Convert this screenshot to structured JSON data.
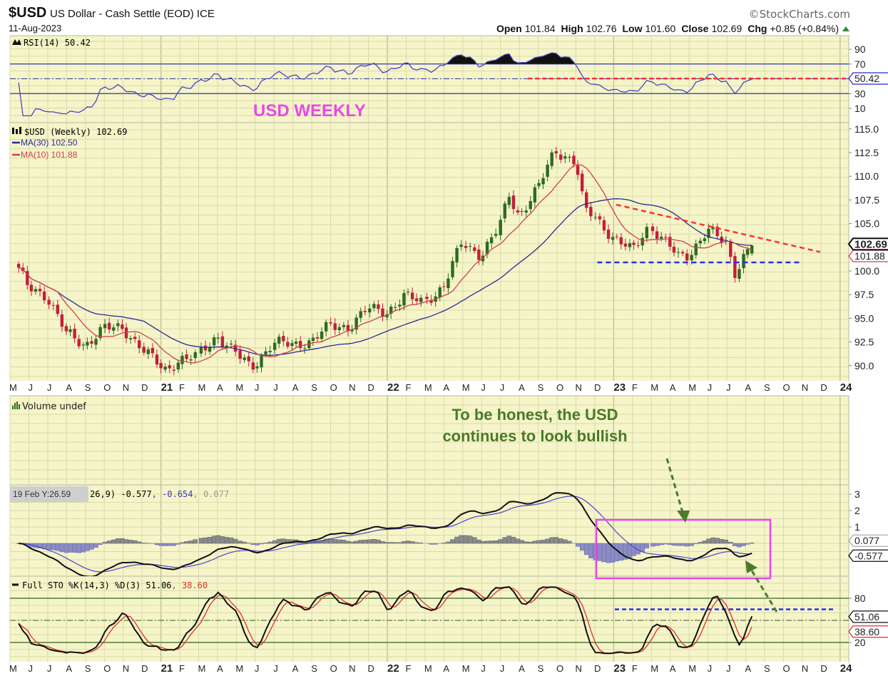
{
  "header": {
    "symbol": "$USD",
    "name": "US Dollar - Cash Settle (EOD) ICE",
    "date": "11-Aug-2023",
    "watermark": "©StockCharts.com",
    "open_label": "Open",
    "open": "101.84",
    "high_label": "High",
    "high": "102.76",
    "low_label": "Low",
    "low": "101.60",
    "close_label": "Close",
    "close": "102.69",
    "chg_label": "Chg",
    "chg": "+0.85 (+0.84%)",
    "up_icon": "triangle-up-icon"
  },
  "legends": {
    "rsi": "RSI(14) 50.42",
    "price": "$USD (Weekly) 102.69",
    "ma30": "MA(30) 102.50",
    "ma10": "MA(10) 101.88",
    "volume": "Volume undef",
    "macd_tail": "26,9) -0.577",
    "macd_signal": ", -0.654",
    "macd_hist": ", 0.077",
    "tooltip": "19 Feb Y:26.59",
    "sto": "Full STO %K(14,3) %D(3) 51.06",
    "sto_d": ", 38.60"
  },
  "badges": {
    "rsi": "50.42",
    "price": "102.69",
    "ma10": "101.88",
    "macd_hist": "0.077",
    "macd": "-0.577",
    "sto_k": "51.06",
    "sto_d": "38.60"
  },
  "annotations": {
    "title": "USD WEEKLY",
    "comment_line1": "To be honest, the USD",
    "comment_line2": "continues to look bullish"
  },
  "colors": {
    "panel": "#f5f5c9",
    "grid": "#d9d9a9",
    "up": "#2e6b1f",
    "down": "#c41e3a",
    "ma30": "#2a2a9a",
    "ma10": "#d04050",
    "rsi": "#4b45c8",
    "annot_red": "#ff3030",
    "annot_blue": "#2233ee",
    "annot_pink": "#ee44ee",
    "annot_green": "#4a7a2a"
  },
  "chart_data": {
    "type": "candlestick",
    "title": "$USD US Dollar - Cash Settle (EOD) ICE — Weekly",
    "period": "weekly",
    "last_bar": {
      "date": "2023-08-11",
      "open": 101.84,
      "high": 102.76,
      "low": 101.6,
      "close": 102.69
    },
    "anchors": [
      {
        "date": "2020-05-15",
        "close": 100.1
      },
      {
        "date": "2020-05-29",
        "close": 98.4
      },
      {
        "date": "2020-06-30",
        "close": 97.4
      },
      {
        "date": "2020-07-31",
        "close": 93.4
      },
      {
        "date": "2020-08-31",
        "close": 92.2
      },
      {
        "date": "2020-09-30",
        "close": 93.9
      },
      {
        "date": "2020-10-31",
        "close": 94.0
      },
      {
        "date": "2020-11-30",
        "close": 91.9
      },
      {
        "date": "2020-12-31",
        "close": 89.9
      },
      {
        "date": "2021-01-06",
        "close": 89.5
      },
      {
        "date": "2021-01-31",
        "close": 90.6
      },
      {
        "date": "2021-02-28",
        "close": 90.9
      },
      {
        "date": "2021-03-31",
        "close": 93.2
      },
      {
        "date": "2021-04-30",
        "close": 91.3
      },
      {
        "date": "2021-05-25",
        "close": 89.8
      },
      {
        "date": "2021-06-30",
        "close": 92.4
      },
      {
        "date": "2021-07-31",
        "close": 92.2
      },
      {
        "date": "2021-08-31",
        "close": 92.6
      },
      {
        "date": "2021-09-30",
        "close": 94.2
      },
      {
        "date": "2021-10-31",
        "close": 94.1
      },
      {
        "date": "2021-11-30",
        "close": 96.0
      },
      {
        "date": "2021-12-31",
        "close": 95.7
      },
      {
        "date": "2022-01-28",
        "close": 97.3
      },
      {
        "date": "2022-02-28",
        "close": 96.7
      },
      {
        "date": "2022-03-31",
        "close": 98.3
      },
      {
        "date": "2022-04-30",
        "close": 103.0
      },
      {
        "date": "2022-05-31",
        "close": 101.7
      },
      {
        "date": "2022-06-30",
        "close": 104.7
      },
      {
        "date": "2022-07-15",
        "close": 108.0
      },
      {
        "date": "2022-07-31",
        "close": 105.9
      },
      {
        "date": "2022-08-31",
        "close": 108.7
      },
      {
        "date": "2022-09-28",
        "close": 112.8
      },
      {
        "date": "2022-10-31",
        "close": 111.5
      },
      {
        "date": "2022-11-15",
        "close": 106.3
      },
      {
        "date": "2022-11-30",
        "close": 105.9
      },
      {
        "date": "2022-12-31",
        "close": 103.5
      },
      {
        "date": "2023-01-31",
        "close": 102.1
      },
      {
        "date": "2023-02-28",
        "close": 104.9
      },
      {
        "date": "2023-03-31",
        "close": 102.5
      },
      {
        "date": "2023-04-14",
        "close": 101.5
      },
      {
        "date": "2023-04-30",
        "close": 101.7
      },
      {
        "date": "2023-05-31",
        "close": 104.3
      },
      {
        "date": "2023-06-30",
        "close": 102.9
      },
      {
        "date": "2023-07-14",
        "close": 99.9
      },
      {
        "date": "2023-07-31",
        "close": 101.9
      },
      {
        "date": "2023-08-11",
        "close": 102.69
      }
    ],
    "overlays": [
      "MA(30)",
      "MA(10)"
    ],
    "indicators": [
      "RSI(14)",
      "MACD(12,26,9)",
      "Full STO %K(14,3) %D(3)"
    ],
    "price_ylim": [
      88.5,
      115.5
    ],
    "price_ticks": [
      "115.0",
      "112.5",
      "110.0",
      "107.5",
      "105.0",
      "100.0",
      "97.5",
      "95.0",
      "92.5",
      "90.0"
    ],
    "rsi_ticks": [
      "90",
      "70",
      "30",
      "10"
    ],
    "rsi_levels": [
      70,
      30
    ],
    "macd_ticks": [
      "3",
      "2",
      "1"
    ],
    "sto_ticks": [
      "80",
      "20"
    ],
    "sto_levels": [
      80,
      20
    ],
    "x_labels": [
      {
        "t": "M"
      },
      {
        "t": "J"
      },
      {
        "t": "J"
      },
      {
        "t": "A"
      },
      {
        "t": "S"
      },
      {
        "t": "O"
      },
      {
        "t": "N"
      },
      {
        "t": "D"
      },
      {
        "t": "21",
        "year": true
      },
      {
        "t": "F"
      },
      {
        "t": "M"
      },
      {
        "t": "A"
      },
      {
        "t": "M"
      },
      {
        "t": "J"
      },
      {
        "t": "J"
      },
      {
        "t": "A"
      },
      {
        "t": "S"
      },
      {
        "t": "O"
      },
      {
        "t": "N"
      },
      {
        "t": "D"
      },
      {
        "t": "22",
        "year": true
      },
      {
        "t": "F"
      },
      {
        "t": "M"
      },
      {
        "t": "A"
      },
      {
        "t": "M"
      },
      {
        "t": "J"
      },
      {
        "t": "J"
      },
      {
        "t": "A"
      },
      {
        "t": "S"
      },
      {
        "t": "O"
      },
      {
        "t": "N"
      },
      {
        "t": "D"
      },
      {
        "t": "23",
        "year": true
      },
      {
        "t": "F"
      },
      {
        "t": "M"
      },
      {
        "t": "A"
      },
      {
        "t": "M"
      },
      {
        "t": "J"
      },
      {
        "t": "J"
      },
      {
        "t": "A"
      },
      {
        "t": "S"
      },
      {
        "t": "O"
      },
      {
        "t": "N"
      },
      {
        "t": "D"
      },
      {
        "t": "24",
        "year": true
      }
    ],
    "drawn_lines": [
      {
        "name": "resistance-trendline",
        "panel": "price",
        "from": {
          "date": "2023-01-05",
          "value": 107.0
        },
        "to": {
          "date": "2023-11-30",
          "value": 102.0
        },
        "color": "red",
        "style": "dashed"
      },
      {
        "name": "support-line",
        "panel": "price",
        "from": {
          "date": "2022-12-05",
          "value": 100.9
        },
        "to": {
          "date": "2023-10-30",
          "value": 100.9
        },
        "color": "blue",
        "style": "dashed"
      },
      {
        "name": "rsi-level-line",
        "panel": "rsi",
        "value": 50.42,
        "color": "red",
        "style": "dashed"
      },
      {
        "name": "sto-level-line",
        "panel": "sto",
        "value": 65,
        "color": "blue",
        "style": "dashed"
      }
    ]
  }
}
